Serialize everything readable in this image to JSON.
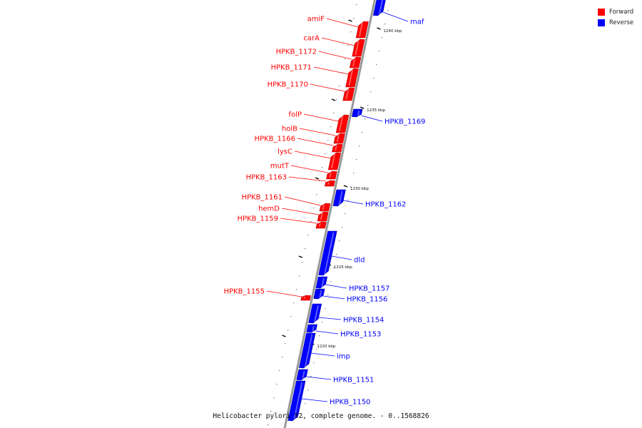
{
  "caption": "Helicobacter pylori 52, complete genome. - 0..1568826",
  "legend": [
    {
      "label": "Forward",
      "color": "#ff0000"
    },
    {
      "label": "Reverse",
      "color": "#0000ff"
    }
  ],
  "colors": {
    "forward": "#ff0000",
    "reverse": "#0000ff",
    "backbone": "#999999"
  },
  "ticks": [
    {
      "label": "1240 kbp",
      "pos_kbp": 1240
    },
    {
      "label": "1235 kbp",
      "pos_kbp": 1235
    },
    {
      "label": "1230 kbp",
      "pos_kbp": 1230
    },
    {
      "label": "1225 kbp",
      "pos_kbp": 1225
    },
    {
      "label": "1220 kbp",
      "pos_kbp": 1220
    }
  ],
  "genes": [
    {
      "name": "maf",
      "strand": "reverse"
    },
    {
      "name": "amiF",
      "strand": "forward"
    },
    {
      "name": "carA",
      "strand": "forward"
    },
    {
      "name": "HPKB_1172",
      "strand": "forward"
    },
    {
      "name": "HPKB_1171",
      "strand": "forward"
    },
    {
      "name": "HPKB_1170",
      "strand": "forward"
    },
    {
      "name": "HPKB_1169",
      "strand": "reverse"
    },
    {
      "name": "folP",
      "strand": "forward"
    },
    {
      "name": "holB",
      "strand": "forward"
    },
    {
      "name": "HPKB_1166",
      "strand": "forward"
    },
    {
      "name": "lysC",
      "strand": "forward"
    },
    {
      "name": "mutT",
      "strand": "forward"
    },
    {
      "name": "HPKB_1163",
      "strand": "forward"
    },
    {
      "name": "HPKB_1162",
      "strand": "reverse"
    },
    {
      "name": "HPKB_1161",
      "strand": "forward"
    },
    {
      "name": "hemD",
      "strand": "forward"
    },
    {
      "name": "HPKB_1159",
      "strand": "forward"
    },
    {
      "name": "dld",
      "strand": "reverse"
    },
    {
      "name": "HPKB_1157",
      "strand": "reverse"
    },
    {
      "name": "HPKB_1156",
      "strand": "reverse"
    },
    {
      "name": "HPKB_1155",
      "strand": "forward"
    },
    {
      "name": "HPKB_1154",
      "strand": "reverse"
    },
    {
      "name": "HPKB_1153",
      "strand": "reverse"
    },
    {
      "name": "imp",
      "strand": "reverse"
    },
    {
      "name": "HPKB_1151",
      "strand": "reverse"
    },
    {
      "name": "HPKB_1150",
      "strand": "reverse"
    }
  ]
}
